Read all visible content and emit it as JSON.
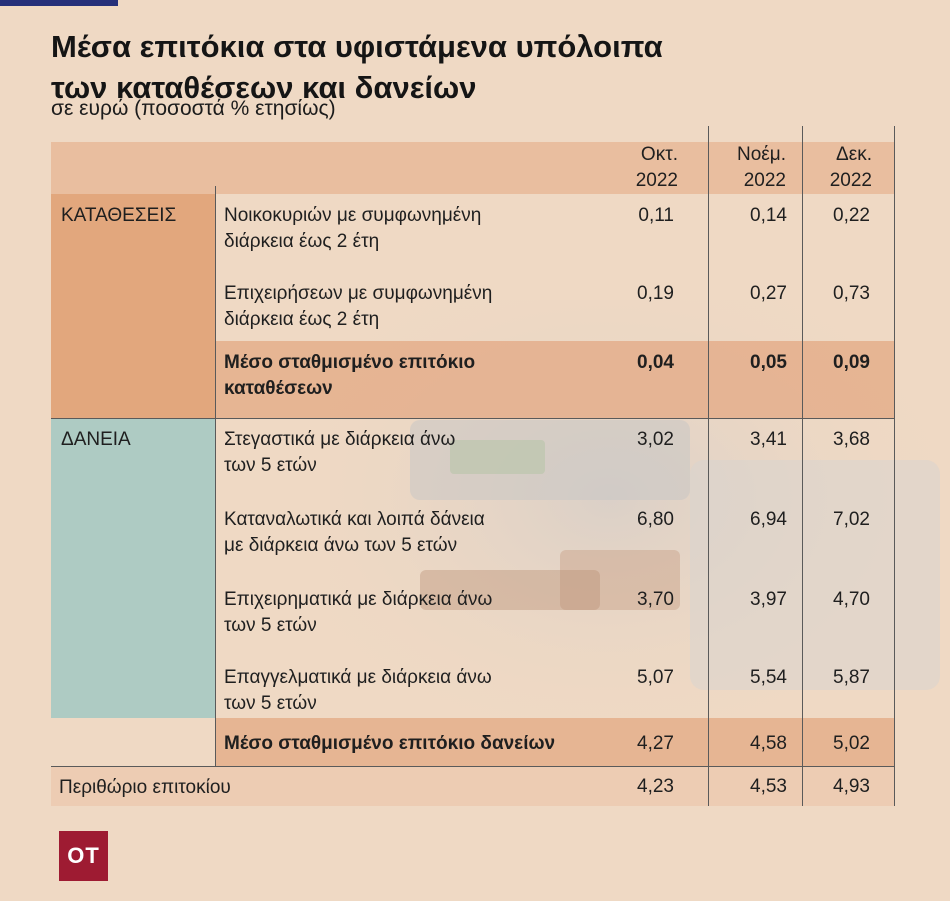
{
  "title_line1": "Μέσα επιτόκια στα υφιστάμενα υπόλοιπα",
  "title_line2": "των καταθέσεων και δανείων",
  "subtitle": "σε ευρώ (ποσοστά % ετησίως)",
  "logo": "OT",
  "colors": {
    "header": "#e7b899",
    "deposits": "#e2a77d",
    "loans": "#aecbc3",
    "bold_row": "#e4b08e",
    "logo": "#9e1b32"
  },
  "chart_data": {
    "type": "table",
    "columns": [
      {
        "line1": "Οκτ.",
        "line2": "2022"
      },
      {
        "line1": "Νοέμ.",
        "line2": "2022"
      },
      {
        "line1": "Δεκ.",
        "line2": "2022"
      }
    ],
    "groups": [
      {
        "name": "ΚΑΤΑΘΕΣΕΙΣ",
        "rows": [
          {
            "label1": "Νοικοκυριών με συμφωνημένη",
            "label2": "διάρκεια έως 2 έτη",
            "values": [
              "0,11",
              "0,14",
              "0,22"
            ]
          },
          {
            "label1": "Επιχειρήσεων με συμφωνημένη",
            "label2": "διάρκεια έως 2 έτη",
            "values": [
              "0,19",
              "0,27",
              "0,73"
            ]
          },
          {
            "label1": "Μέσο σταθμισμένο επιτόκιο",
            "label2": "καταθέσεων",
            "values": [
              "0,04",
              "0,05",
              "0,09"
            ],
            "bold": true
          }
        ]
      },
      {
        "name": "ΔΑΝΕΙΑ",
        "rows": [
          {
            "label1": "Στεγαστικά με διάρκεια άνω",
            "label2": "των 5 ετών",
            "values": [
              "3,02",
              "3,41",
              "3,68"
            ]
          },
          {
            "label1": "Καταναλωτικά και λοιπά δάνεια",
            "label2": "με διάρκεια άνω των 5 ετών",
            "values": [
              "6,80",
              "6,94",
              "7,02"
            ]
          },
          {
            "label1": "Επιχειρηματικά με διάρκεια άνω",
            "label2": "των 5 ετών",
            "values": [
              "3,70",
              "3,97",
              "4,70"
            ]
          },
          {
            "label1": "Επαγγελματικά με διάρκεια άνω",
            "label2": "των 5 ετών",
            "values": [
              "5,07",
              "5,54",
              "5,87"
            ]
          },
          {
            "label1": "Μέσο σταθμισμένο επιτόκιο δανείων",
            "label2": "",
            "values": [
              "4,27",
              "4,58",
              "5,02"
            ],
            "bold": true
          }
        ]
      }
    ],
    "footer": {
      "label": "Περιθώριο επιτοκίου",
      "values": [
        "4,23",
        "4,53",
        "4,93"
      ]
    }
  }
}
